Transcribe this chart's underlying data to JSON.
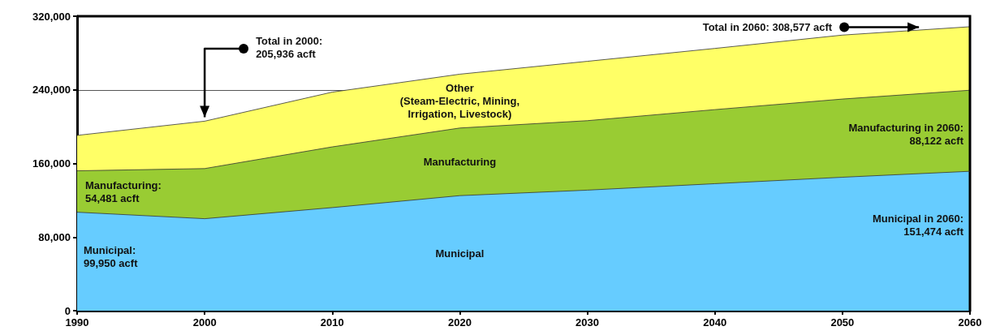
{
  "chart_data": {
    "type": "area",
    "stacked": true,
    "x": [
      1990,
      2000,
      2010,
      2020,
      2030,
      2040,
      2050,
      2060
    ],
    "xlim": [
      1990,
      2060
    ],
    "xticks": [
      1990,
      2000,
      2010,
      2020,
      2030,
      2040,
      2050,
      2060
    ],
    "ylim": [
      0,
      320000
    ],
    "yticks": [
      0,
      {
        "value": 80000,
        "label": "80,000"
      },
      {
        "value": 160000,
        "label": "160,000"
      },
      {
        "value": 240000,
        "label": "240,000"
      },
      {
        "value": 320000,
        "label": "320,000"
      }
    ],
    "grid": "y",
    "legend": false,
    "series": [
      {
        "name": "Municipal",
        "color": "#66ccff",
        "values": [
          107000,
          99950,
          112000,
          125000,
          131000,
          138000,
          145000,
          151474
        ]
      },
      {
        "name": "Manufacturing",
        "color": "#99cc33",
        "values": [
          45000,
          54481,
          66000,
          73500,
          75500,
          80500,
          85000,
          88122
        ]
      },
      {
        "name": "Other\n(Steam-Electric, Mining,\nIrrigation, Livestock)",
        "color": "#ffff66",
        "values": [
          38500,
          51505,
          59500,
          58500,
          64500,
          66500,
          69500,
          68981
        ]
      }
    ],
    "annotations": [
      {
        "text": "Total in 2000:\n205,936 acft",
        "x": 2000,
        "y": 205936
      },
      {
        "text": "Total in 2060: 308,577 acft",
        "x": 2056,
        "y": 308000
      },
      "Manufacturing:\n54,481 acft",
      "Municipal:\n99,950 acft",
      "Manufacturing in 2060:\n88,122 acft",
      "Municipal in 2060:\n151,474 acft"
    ]
  }
}
